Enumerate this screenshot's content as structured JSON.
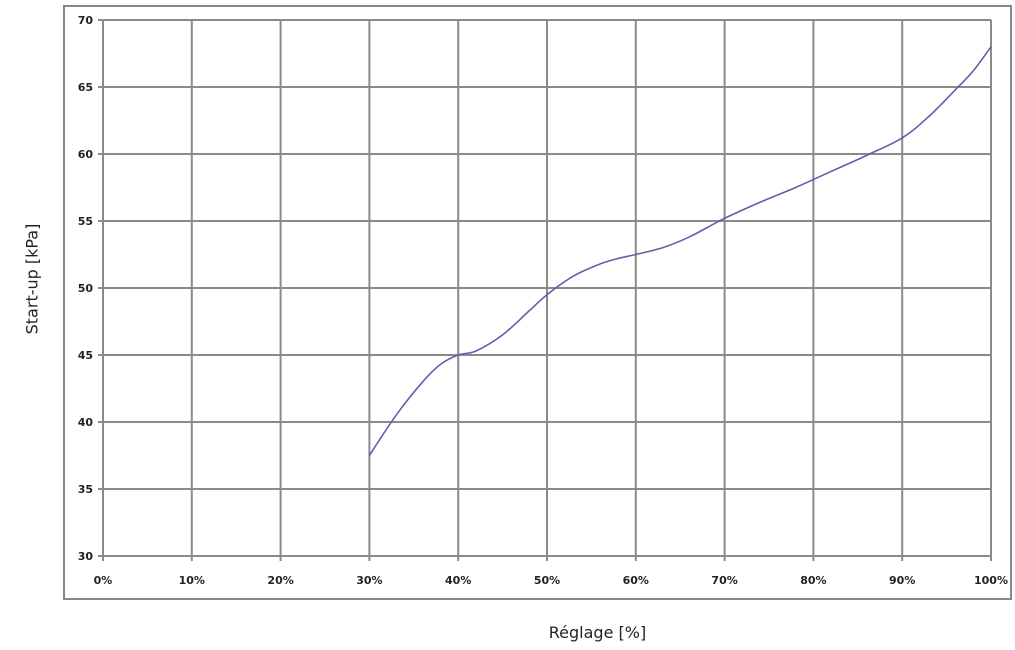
{
  "chart_data": {
    "type": "line",
    "xlabel": "Réglage [%]",
    "ylabel": "Start-up [kPa]",
    "xlim": [
      0,
      100
    ],
    "ylim": [
      30,
      70
    ],
    "x_ticks": [
      "0%",
      "10%",
      "20%",
      "30%",
      "40%",
      "50%",
      "60%",
      "70%",
      "80%",
      "90%",
      "100%"
    ],
    "y_ticks": [
      "30",
      "35",
      "40",
      "45",
      "50",
      "55",
      "60",
      "65",
      "70"
    ],
    "grid": true,
    "series": [
      {
        "color": "#5a63a8",
        "x": [
          30,
          33,
          36,
          38,
          40,
          42,
          45,
          48,
          50,
          53,
          56,
          58,
          60,
          63,
          66,
          70,
          74,
          78,
          82,
          86,
          90,
          93,
          96,
          98,
          100
        ],
        "y": [
          37.5,
          40.5,
          43,
          44.3,
          45,
          45.3,
          46.5,
          48.3,
          49.5,
          50.9,
          51.8,
          52.2,
          52.5,
          53,
          53.8,
          55.2,
          56.4,
          57.5,
          58.7,
          59.9,
          61.2,
          62.8,
          64.8,
          66.2,
          68
        ]
      }
    ]
  }
}
